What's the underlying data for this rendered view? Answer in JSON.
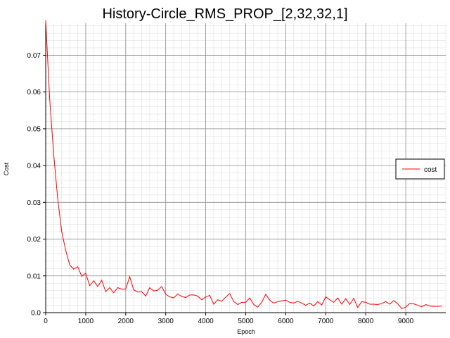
{
  "chart_data": {
    "type": "line",
    "title": "History-Circle_RMS_PROP_[2,32,32,1]",
    "xlabel": "Epoch",
    "ylabel": "Cost",
    "xlim": [
      0,
      10000
    ],
    "ylim": [
      0,
      0.0787
    ],
    "x_ticks": [
      0,
      1000,
      2000,
      3000,
      4000,
      5000,
      6000,
      7000,
      8000,
      9000
    ],
    "y_ticks": [
      0.0,
      0.01,
      0.02,
      0.03,
      0.04,
      0.05,
      0.06,
      0.07
    ],
    "x_tick_labels": [
      "0",
      "1000",
      "2000",
      "3000",
      "4000",
      "5000",
      "6000",
      "7000",
      "8000",
      "9000"
    ],
    "y_tick_labels": [
      "0.0",
      "0.01",
      "0.02",
      "0.03",
      "0.04",
      "0.05",
      "0.06",
      "0.07"
    ],
    "grid": true,
    "legend": {
      "position": "right",
      "entries": [
        "cost"
      ]
    },
    "series": [
      {
        "name": "cost",
        "color": "#ff0000",
        "x": [
          0,
          100,
          200,
          300,
          400,
          500,
          600,
          700,
          800,
          900,
          1000,
          1100,
          1200,
          1300,
          1400,
          1500,
          1600,
          1700,
          1800,
          1900,
          2000,
          2100,
          2200,
          2300,
          2400,
          2500,
          2600,
          2700,
          2800,
          2900,
          3000,
          3100,
          3200,
          3300,
          3400,
          3500,
          3600,
          3700,
          3800,
          3900,
          4000,
          4100,
          4200,
          4300,
          4400,
          4500,
          4600,
          4700,
          4800,
          4900,
          5000,
          5100,
          5200,
          5300,
          5400,
          5500,
          5600,
          5700,
          5800,
          5900,
          6000,
          6100,
          6200,
          6300,
          6400,
          6500,
          6600,
          6700,
          6800,
          6900,
          7000,
          7100,
          7200,
          7300,
          7400,
          7500,
          7600,
          7700,
          7800,
          7900,
          8000,
          8100,
          8200,
          8300,
          8400,
          8500,
          8600,
          8700,
          8800,
          8900,
          9000,
          9100,
          9200,
          9300,
          9400,
          9500,
          9600,
          9700,
          9800,
          9900
        ],
        "values": [
          0.0795,
          0.058,
          0.043,
          0.031,
          0.022,
          0.017,
          0.013,
          0.0118,
          0.0125,
          0.0099,
          0.0107,
          0.0073,
          0.0087,
          0.0071,
          0.0088,
          0.0057,
          0.0068,
          0.0054,
          0.0068,
          0.0064,
          0.0064,
          0.0098,
          0.0062,
          0.0056,
          0.0057,
          0.0045,
          0.0068,
          0.0059,
          0.0061,
          0.0071,
          0.005,
          0.0043,
          0.004,
          0.0051,
          0.0044,
          0.0041,
          0.0048,
          0.0048,
          0.0045,
          0.0035,
          0.0043,
          0.0047,
          0.0023,
          0.0035,
          0.0031,
          0.0042,
          0.0052,
          0.003,
          0.0022,
          0.0028,
          0.0028,
          0.004,
          0.0022,
          0.0015,
          0.0028,
          0.005,
          0.0034,
          0.0026,
          0.003,
          0.0032,
          0.0034,
          0.0028,
          0.0026,
          0.0031,
          0.0026,
          0.002,
          0.0026,
          0.0018,
          0.003,
          0.0021,
          0.0043,
          0.0035,
          0.0028,
          0.004,
          0.0023,
          0.0038,
          0.0022,
          0.0039,
          0.0014,
          0.003,
          0.0028,
          0.0023,
          0.0023,
          0.0022,
          0.0025,
          0.003,
          0.0023,
          0.0033,
          0.0024,
          0.0011,
          0.0015,
          0.0025,
          0.0024,
          0.002,
          0.0016,
          0.0022,
          0.0018,
          0.0017,
          0.0017,
          0.0018
        ]
      }
    ]
  }
}
